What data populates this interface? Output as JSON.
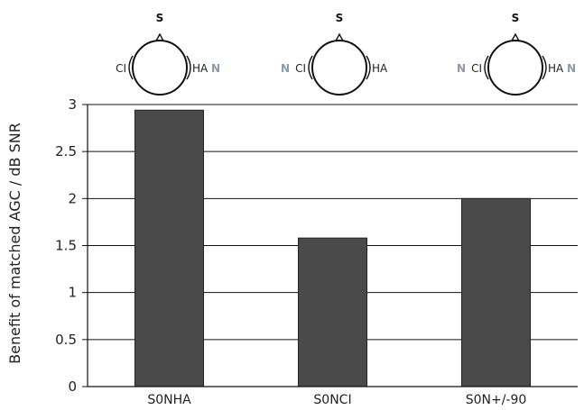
{
  "chart_data": {
    "type": "bar",
    "categories": [
      "S0NHA",
      "S0NCI",
      "S0N+/-90"
    ],
    "values": [
      2.94,
      1.58,
      2.0
    ],
    "title": "",
    "xlabel": "",
    "ylabel": "Benefit of matched AGC / dB SNR",
    "ylim": [
      0,
      3
    ],
    "yticks": [
      "0",
      "0.5",
      "1",
      "1.5",
      "2",
      "2.5",
      "3"
    ],
    "ytick_values": [
      0,
      0.5,
      1,
      1.5,
      2,
      2.5,
      3
    ],
    "grid": "horizontal",
    "bar_color": "#4a4a4a"
  },
  "head_diagrams": [
    {
      "source_label": "S",
      "left_label": "CI",
      "right_label": "HA",
      "left_noise": "",
      "right_noise": "N"
    },
    {
      "source_label": "S",
      "left_label": "CI",
      "right_label": "HA",
      "left_noise": "N",
      "right_noise": ""
    },
    {
      "source_label": "S",
      "left_label": "CI",
      "right_label": "HA",
      "left_noise": "N",
      "right_noise": "N"
    }
  ],
  "colors": {
    "noise_label": "#8a9aa8",
    "bar": "#4a4a4a"
  }
}
